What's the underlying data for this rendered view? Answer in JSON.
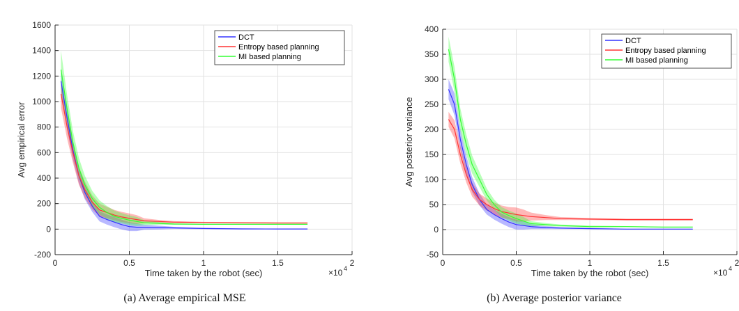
{
  "colors": {
    "dct": "#3333ff",
    "entropy": "#ff3333",
    "mi": "#33ff33",
    "grid": "#e2e2e2",
    "axis": "#262626"
  },
  "chart_data": [
    {
      "type": "line",
      "caption": "(a) Average empirical MSE",
      "xlabel": "Time taken by the robot (sec)",
      "ylabel": "Avg empirical error",
      "x_multiplier": "×10",
      "x_multiplier_exp": "4",
      "xlim": [
        0,
        20000
      ],
      "ylim": [
        -200,
        1600
      ],
      "xticks": [
        0,
        5000,
        10000,
        15000,
        20000
      ],
      "xtick_labels": [
        "0",
        "0.5",
        "1",
        "1.5",
        "2"
      ],
      "yticks": [
        -200,
        0,
        200,
        400,
        600,
        800,
        1000,
        1200,
        1400,
        1600
      ],
      "ytick_labels": [
        "-200",
        "0",
        "200",
        "400",
        "600",
        "800",
        "1000",
        "1200",
        "1400",
        "1600"
      ],
      "grid": true,
      "legend_position": "top-right",
      "series": [
        {
          "name": "DCT",
          "color_key": "dct",
          "x": [
            400,
            800,
            1200,
            1600,
            2000,
            2500,
            3000,
            3500,
            4000,
            4500,
            5000,
            5500,
            6000,
            7000,
            8000,
            10000,
            12500,
            15000,
            17000
          ],
          "y": [
            1160,
            880,
            620,
            420,
            290,
            180,
            100,
            75,
            55,
            35,
            20,
            15,
            15,
            12,
            10,
            5,
            2,
            1,
            1
          ],
          "band": [
            100,
            90,
            75,
            60,
            55,
            45,
            40,
            40,
            40,
            38,
            35,
            30,
            20,
            15,
            8,
            5,
            4,
            3,
            3
          ]
        },
        {
          "name": "Entropy based planning",
          "color_key": "entropy",
          "x": [
            400,
            800,
            1200,
            1600,
            2000,
            2500,
            3000,
            3500,
            4000,
            4500,
            5000,
            5500,
            6000,
            7000,
            8000,
            10000,
            12500,
            15000,
            17000
          ],
          "y": [
            1060,
            810,
            600,
            420,
            310,
            210,
            150,
            130,
            110,
            95,
            85,
            75,
            65,
            60,
            55,
            52,
            50,
            48,
            48
          ],
          "band": [
            110,
            95,
            80,
            70,
            65,
            55,
            50,
            45,
            40,
            40,
            38,
            35,
            20,
            12,
            8,
            5,
            5,
            4,
            4
          ]
        },
        {
          "name": "MI based planning",
          "color_key": "mi",
          "x": [
            400,
            800,
            1200,
            1600,
            2000,
            2500,
            3000,
            3500,
            4000,
            4500,
            5000,
            5500,
            6000,
            7000,
            8000,
            10000,
            12500,
            15000,
            17000
          ],
          "y": [
            1250,
            950,
            680,
            480,
            350,
            240,
            170,
            130,
            100,
            85,
            70,
            60,
            50,
            45,
            40,
            38,
            38,
            38,
            38
          ],
          "band": [
            150,
            110,
            90,
            80,
            70,
            60,
            55,
            50,
            45,
            40,
            38,
            35,
            20,
            10,
            6,
            4,
            3,
            3,
            3
          ]
        }
      ]
    },
    {
      "type": "line",
      "caption": "(b) Average posterior variance",
      "xlabel": "Time taken by the robot (sec)",
      "ylabel": "Avg posterior variance",
      "x_multiplier": "×10",
      "x_multiplier_exp": "4",
      "xlim": [
        0,
        20000
      ],
      "ylim": [
        -50,
        400
      ],
      "xticks": [
        0,
        5000,
        10000,
        15000,
        20000
      ],
      "xtick_labels": [
        "0",
        "0.5",
        "1",
        "1.5",
        "2"
      ],
      "yticks": [
        -50,
        0,
        50,
        100,
        150,
        200,
        250,
        300,
        350,
        400
      ],
      "ytick_labels": [
        "-50",
        "0",
        "50",
        "100",
        "150",
        "200",
        "250",
        "300",
        "350",
        "400"
      ],
      "grid": true,
      "legend_position": "top-right",
      "series": [
        {
          "name": "DCT",
          "color_key": "dct",
          "x": [
            400,
            800,
            1200,
            1600,
            2000,
            2500,
            3000,
            3500,
            4000,
            4500,
            5000,
            5500,
            6000,
            7000,
            8000,
            10000,
            12500,
            15000,
            17000
          ],
          "y": [
            280,
            250,
            180,
            130,
            90,
            60,
            40,
            30,
            22,
            15,
            10,
            8,
            6,
            4,
            3,
            2,
            1,
            1,
            1
          ],
          "band": [
            20,
            22,
            20,
            18,
            15,
            12,
            10,
            10,
            10,
            10,
            10,
            8,
            5,
            3,
            2,
            1,
            1,
            1,
            1
          ]
        },
        {
          "name": "Entropy based planning",
          "color_key": "entropy",
          "x": [
            400,
            800,
            1200,
            1600,
            2000,
            2500,
            3000,
            3500,
            4000,
            4500,
            5000,
            5500,
            6000,
            7000,
            8000,
            10000,
            12500,
            15000,
            17000
          ],
          "y": [
            220,
            200,
            150,
            110,
            80,
            60,
            50,
            42,
            36,
            33,
            30,
            28,
            26,
            24,
            22,
            21,
            20,
            20,
            20
          ],
          "band": [
            15,
            18,
            18,
            16,
            14,
            12,
            12,
            12,
            12,
            12,
            14,
            12,
            8,
            5,
            3,
            2,
            2,
            2,
            2
          ]
        },
        {
          "name": "MI based planning",
          "color_key": "mi",
          "x": [
            400,
            800,
            1200,
            1600,
            2000,
            2500,
            3000,
            3500,
            4000,
            4500,
            5000,
            5500,
            6000,
            7000,
            8000,
            10000,
            12500,
            15000,
            17000
          ],
          "y": [
            360,
            300,
            220,
            170,
            130,
            100,
            70,
            50,
            35,
            28,
            22,
            17,
            12,
            10,
            8,
            6,
            6,
            5,
            5
          ],
          "band": [
            25,
            25,
            22,
            20,
            18,
            15,
            12,
            10,
            10,
            10,
            10,
            8,
            5,
            3,
            2,
            2,
            1,
            1,
            1
          ]
        }
      ]
    }
  ]
}
